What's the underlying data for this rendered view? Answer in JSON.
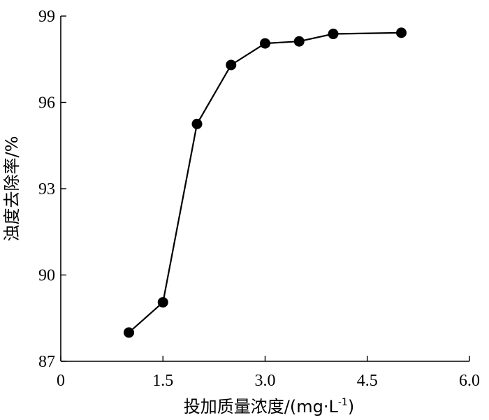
{
  "chart_data": {
    "type": "line",
    "xlabel": "投加质量浓度/(mg·L",
    "xlabel_superscript": "-1",
    "xlabel_suffix": ")",
    "ylabel": "浊度去除率/%",
    "xlim": [
      0,
      6.0
    ],
    "ylim": [
      87,
      99
    ],
    "x_ticks": [
      "0",
      "1.5",
      "3.0",
      "4.5",
      "6.0"
    ],
    "y_ticks": [
      "87",
      "90",
      "93",
      "96",
      "99"
    ],
    "grid": false,
    "series": [
      {
        "x": [
          1.0,
          1.5,
          2.0,
          2.5,
          3.0,
          3.5,
          4.0,
          5.0
        ],
        "y": [
          88.0,
          89.05,
          95.25,
          97.3,
          98.05,
          98.12,
          98.38,
          98.42
        ]
      }
    ],
    "marker": "filled-circle",
    "color": "#000000"
  }
}
